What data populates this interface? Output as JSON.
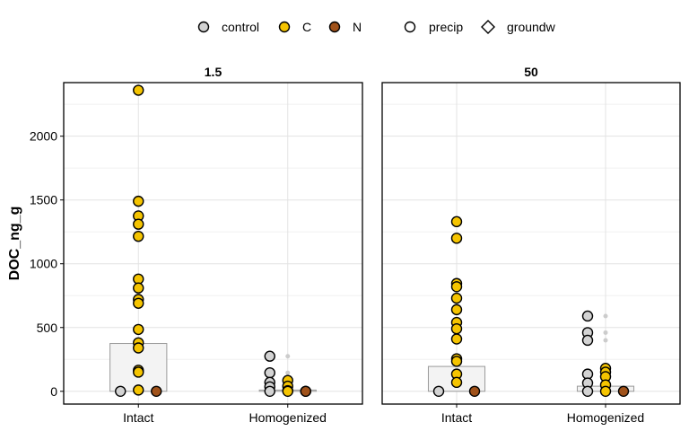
{
  "chart_data": {
    "type": "scatter",
    "title": "",
    "xlabel": "",
    "ylabel": "DOC_ng_g",
    "ylim": [
      -100,
      2420
    ],
    "yticks": [
      0,
      500,
      1000,
      1500,
      2000
    ],
    "categories": [
      "Intact",
      "Homogenized"
    ],
    "legend": {
      "position": "top",
      "treatment": [
        {
          "name": "control",
          "color": "#d3d3d3"
        },
        {
          "name": "C",
          "color": "#f5c400"
        },
        {
          "name": "N",
          "color": "#a0521a"
        }
      ],
      "source": [
        {
          "name": "precip",
          "shape": "circle"
        },
        {
          "name": "groundw",
          "shape": "diamond"
        }
      ]
    },
    "panels": [
      {
        "label": "1.5",
        "bars": [
          {
            "category": "Intact",
            "value": 375
          },
          {
            "category": "Homogenized",
            "value": 10
          }
        ],
        "points": [
          {
            "category": "Intact",
            "treatment": "control",
            "source": "groundw",
            "y": 0
          },
          {
            "category": "Intact",
            "treatment": "C",
            "source": "precip",
            "y": 2360
          },
          {
            "category": "Intact",
            "treatment": "C",
            "source": "groundw",
            "y": 1490
          },
          {
            "category": "Intact",
            "treatment": "C",
            "source": "groundw",
            "y": 1375
          },
          {
            "category": "Intact",
            "treatment": "C",
            "source": "groundw",
            "y": 1310
          },
          {
            "category": "Intact",
            "treatment": "C",
            "source": "precip",
            "y": 1215
          },
          {
            "category": "Intact",
            "treatment": "C",
            "source": "precip",
            "y": 880
          },
          {
            "category": "Intact",
            "treatment": "C",
            "source": "precip",
            "y": 810
          },
          {
            "category": "Intact",
            "treatment": "C",
            "source": "precip",
            "y": 720
          },
          {
            "category": "Intact",
            "treatment": "C",
            "source": "precip",
            "y": 690
          },
          {
            "category": "Intact",
            "treatment": "C",
            "source": "groundw",
            "y": 485
          },
          {
            "category": "Intact",
            "treatment": "C",
            "source": "precip",
            "y": 380
          },
          {
            "category": "Intact",
            "treatment": "C",
            "source": "groundw",
            "y": 340
          },
          {
            "category": "Intact",
            "treatment": "C",
            "source": "precip",
            "y": 165
          },
          {
            "category": "Intact",
            "treatment": "C",
            "source": "groundw",
            "y": 150
          },
          {
            "category": "Intact",
            "treatment": "C",
            "source": "precip",
            "y": 10
          },
          {
            "category": "Intact",
            "treatment": "N",
            "source": "precip",
            "y": 0
          },
          {
            "category": "Homogenized",
            "treatment": "control",
            "source": "precip",
            "y": 275
          },
          {
            "category": "Homogenized",
            "treatment": "control",
            "source": "groundw",
            "y": 145
          },
          {
            "category": "Homogenized",
            "treatment": "control",
            "source": "precip",
            "y": 70
          },
          {
            "category": "Homogenized",
            "treatment": "control",
            "source": "precip",
            "y": 35
          },
          {
            "category": "Homogenized",
            "treatment": "control",
            "source": "groundw",
            "y": 0
          },
          {
            "category": "Homogenized",
            "treatment": "C",
            "source": "precip",
            "y": 85
          },
          {
            "category": "Homogenized",
            "treatment": "C",
            "source": "groundw",
            "y": 40
          },
          {
            "category": "Homogenized",
            "treatment": "C",
            "source": "precip",
            "y": 5
          },
          {
            "category": "Homogenized",
            "treatment": "C",
            "source": "groundw",
            "y": 0
          },
          {
            "category": "Homogenized",
            "treatment": "N",
            "source": "precip",
            "y": 0
          },
          {
            "category": "Homogenized",
            "treatment": "N",
            "source": "groundw",
            "y": 0
          }
        ],
        "outliers": [
          {
            "category": "Homogenized",
            "y": 275
          },
          {
            "category": "Homogenized",
            "y": 145
          },
          {
            "category": "Homogenized",
            "y": 85
          }
        ]
      },
      {
        "label": "50",
        "bars": [
          {
            "category": "Intact",
            "value": 195
          },
          {
            "category": "Homogenized",
            "value": 40
          }
        ],
        "points": [
          {
            "category": "Intact",
            "treatment": "control",
            "source": "precip",
            "y": 0
          },
          {
            "category": "Intact",
            "treatment": "C",
            "source": "precip",
            "y": 1330
          },
          {
            "category": "Intact",
            "treatment": "C",
            "source": "precip",
            "y": 1200
          },
          {
            "category": "Intact",
            "treatment": "C",
            "source": "precip",
            "y": 845
          },
          {
            "category": "Intact",
            "treatment": "C",
            "source": "groundw",
            "y": 820
          },
          {
            "category": "Intact",
            "treatment": "C",
            "source": "precip",
            "y": 730
          },
          {
            "category": "Intact",
            "treatment": "C",
            "source": "precip",
            "y": 640
          },
          {
            "category": "Intact",
            "treatment": "C",
            "source": "groundw",
            "y": 540
          },
          {
            "category": "Intact",
            "treatment": "C",
            "source": "groundw",
            "y": 490
          },
          {
            "category": "Intact",
            "treatment": "C",
            "source": "groundw",
            "y": 410
          },
          {
            "category": "Intact",
            "treatment": "C",
            "source": "precip",
            "y": 255
          },
          {
            "category": "Intact",
            "treatment": "C",
            "source": "precip",
            "y": 235
          },
          {
            "category": "Intact",
            "treatment": "C",
            "source": "groundw",
            "y": 135
          },
          {
            "category": "Intact",
            "treatment": "C",
            "source": "groundw",
            "y": 70
          },
          {
            "category": "Intact",
            "treatment": "N",
            "source": "groundw",
            "y": 0
          },
          {
            "category": "Homogenized",
            "treatment": "control",
            "source": "precip",
            "y": 590
          },
          {
            "category": "Homogenized",
            "treatment": "control",
            "source": "groundw",
            "y": 460
          },
          {
            "category": "Homogenized",
            "treatment": "control",
            "source": "precip",
            "y": 400
          },
          {
            "category": "Homogenized",
            "treatment": "control",
            "source": "groundw",
            "y": 135
          },
          {
            "category": "Homogenized",
            "treatment": "control",
            "source": "precip",
            "y": 65
          },
          {
            "category": "Homogenized",
            "treatment": "control",
            "source": "groundw",
            "y": 0
          },
          {
            "category": "Homogenized",
            "treatment": "C",
            "source": "precip",
            "y": 180
          },
          {
            "category": "Homogenized",
            "treatment": "C",
            "source": "precip",
            "y": 150
          },
          {
            "category": "Homogenized",
            "treatment": "C",
            "source": "precip",
            "y": 115
          },
          {
            "category": "Homogenized",
            "treatment": "C",
            "source": "groundw",
            "y": 50
          },
          {
            "category": "Homogenized",
            "treatment": "C",
            "source": "precip",
            "y": 0
          },
          {
            "category": "Homogenized",
            "treatment": "N",
            "source": "precip",
            "y": 0
          }
        ],
        "outliers": [
          {
            "category": "Homogenized",
            "y": 590
          },
          {
            "category": "Homogenized",
            "y": 460
          },
          {
            "category": "Homogenized",
            "y": 400
          },
          {
            "category": "Homogenized",
            "y": 180
          },
          {
            "category": "Homogenized",
            "y": 150
          }
        ]
      }
    ]
  }
}
